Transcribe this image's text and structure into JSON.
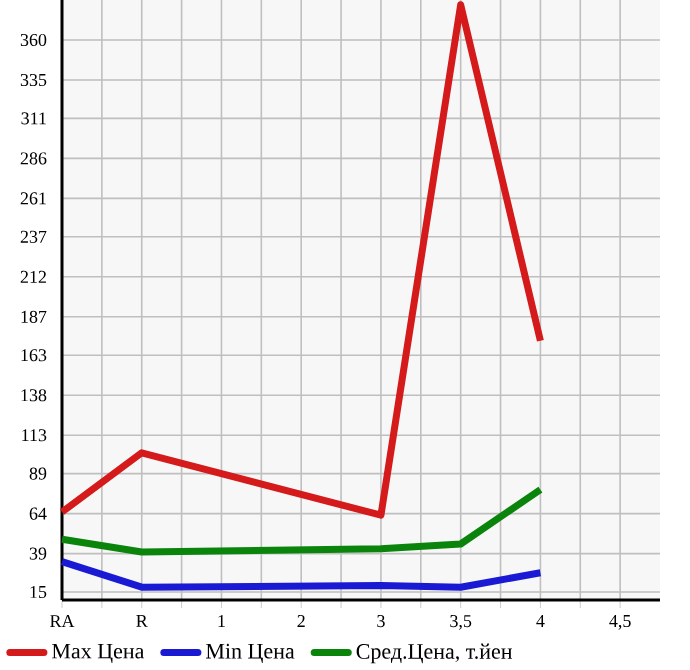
{
  "chart_data": {
    "type": "line",
    "categories": [
      "RA",
      "R",
      "1",
      "2",
      "3",
      "3,5",
      "4",
      "4,5"
    ],
    "series": [
      {
        "name": "Max Цена",
        "color": "#d41a1a",
        "values": [
          65,
          102,
          null,
          null,
          63,
          382,
          172,
          null
        ]
      },
      {
        "name": "Min Цена",
        "color": "#1a1ad4",
        "values": [
          34,
          18,
          null,
          null,
          19,
          18,
          27,
          null
        ]
      },
      {
        "name": "Сред.Цена, т.йен",
        "color": "#0a840a",
        "values": [
          48,
          40,
          null,
          null,
          42,
          45,
          79,
          null
        ]
      }
    ],
    "ylim": [
      10,
      385
    ],
    "yticks": [
      15,
      39,
      64,
      89,
      113,
      138,
      163,
      187,
      212,
      237,
      261,
      286,
      311,
      335,
      360
    ],
    "grid": true,
    "legend": "bottom",
    "marker": "none",
    "line_style": "solid"
  }
}
